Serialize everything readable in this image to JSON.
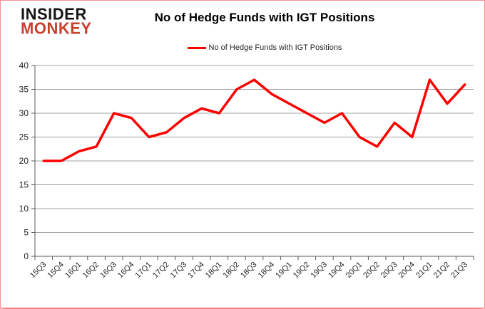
{
  "header": {
    "logo_line1": "INSIDER",
    "logo_line2": "MONKEY",
    "title": "No of Hedge Funds with IGT Positions"
  },
  "legend": {
    "label": "No of Hedge Funds with IGT Positions"
  },
  "colors": {
    "series_line": "#ff0000",
    "logo_black": "#161616",
    "logo_red": "#c9402f",
    "gridline": "#a3a3a3",
    "axis": "#595959",
    "tick_label": "#262626",
    "page_border": "#f79090"
  },
  "chart_data": {
    "type": "line",
    "title": "No of Hedge Funds with IGT Positions",
    "legend_entries": [
      "No of Hedge Funds with IGT Positions"
    ],
    "legend_position": "top",
    "grid": true,
    "ylim": [
      0,
      40
    ],
    "ytick_step": 5,
    "xlabel": "",
    "ylabel": "",
    "categories": [
      "15Q3",
      "15Q4",
      "16Q1",
      "16Q2",
      "16Q3",
      "16Q4",
      "17Q1",
      "17Q2",
      "17Q3",
      "17Q4",
      "18Q1",
      "18Q2",
      "18Q3",
      "18Q4",
      "19Q1",
      "19Q2",
      "19Q3",
      "19Q4",
      "20Q1",
      "20Q2",
      "20Q3",
      "20Q4",
      "21Q1",
      "21Q2",
      "21Q3"
    ],
    "series": [
      {
        "name": "No of Hedge Funds with IGT Positions",
        "values": [
          20,
          20,
          22,
          23,
          30,
          29,
          25,
          26,
          29,
          31,
          30,
          35,
          37,
          34,
          32,
          30,
          28,
          30,
          25,
          23,
          28,
          25,
          37,
          32,
          36
        ]
      }
    ]
  }
}
